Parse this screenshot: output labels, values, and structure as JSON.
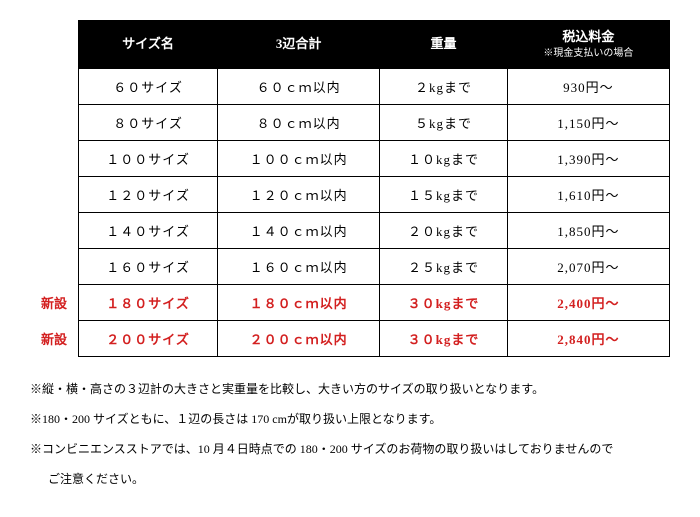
{
  "header": {
    "size": "サイズ名",
    "dim": "3辺合計",
    "weight": "重量",
    "price": "税込料金",
    "price_sub": "※現金支払いの場合"
  },
  "new_label": "新設",
  "rows": [
    {
      "size": "６０サイズ",
      "dim": "６０ｃｍ以内",
      "weight": "２kgまで",
      "price": "930円～",
      "new": false
    },
    {
      "size": "８０サイズ",
      "dim": "８０ｃｍ以内",
      "weight": "５kgまで",
      "price": "1,150円～",
      "new": false
    },
    {
      "size": "１００サイズ",
      "dim": "１００ｃｍ以内",
      "weight": "１０kgまで",
      "price": "1,390円～",
      "new": false
    },
    {
      "size": "１２０サイズ",
      "dim": "１２０ｃｍ以内",
      "weight": "１５kgまで",
      "price": "1,610円～",
      "new": false
    },
    {
      "size": "１４０サイズ",
      "dim": "１４０ｃｍ以内",
      "weight": "２０kgまで",
      "price": "1,850円～",
      "new": false
    },
    {
      "size": "１６０サイズ",
      "dim": "１６０ｃｍ以内",
      "weight": "２５kgまで",
      "price": "2,070円～",
      "new": false
    },
    {
      "size": "１８０サイズ",
      "dim": "１８０ｃｍ以内",
      "weight": "３０kgまで",
      "price": "2,400円～",
      "new": true
    },
    {
      "size": "２００サイズ",
      "dim": "２００ｃｍ以内",
      "weight": "３０kgまで",
      "price": "2,840円～",
      "new": true
    }
  ],
  "notes": [
    "※縦・横・高さの３辺計の大きさと実重量を比較し、大きい方のサイズの取り扱いとなります。",
    "※180・200 サイズともに、１辺の長さは 170 cmが取り扱い上限となります。",
    "※コンビニエンスストアでは、10 月４日時点での 180・200 サイズのお荷物の取り扱いはしておりませんので",
    "ご注意ください。"
  ],
  "colors": {
    "header_bg": "#000000",
    "header_fg": "#ffffff",
    "border": "#000000",
    "new_fg": "#d32020",
    "text": "#000000",
    "bg": "#ffffff"
  }
}
